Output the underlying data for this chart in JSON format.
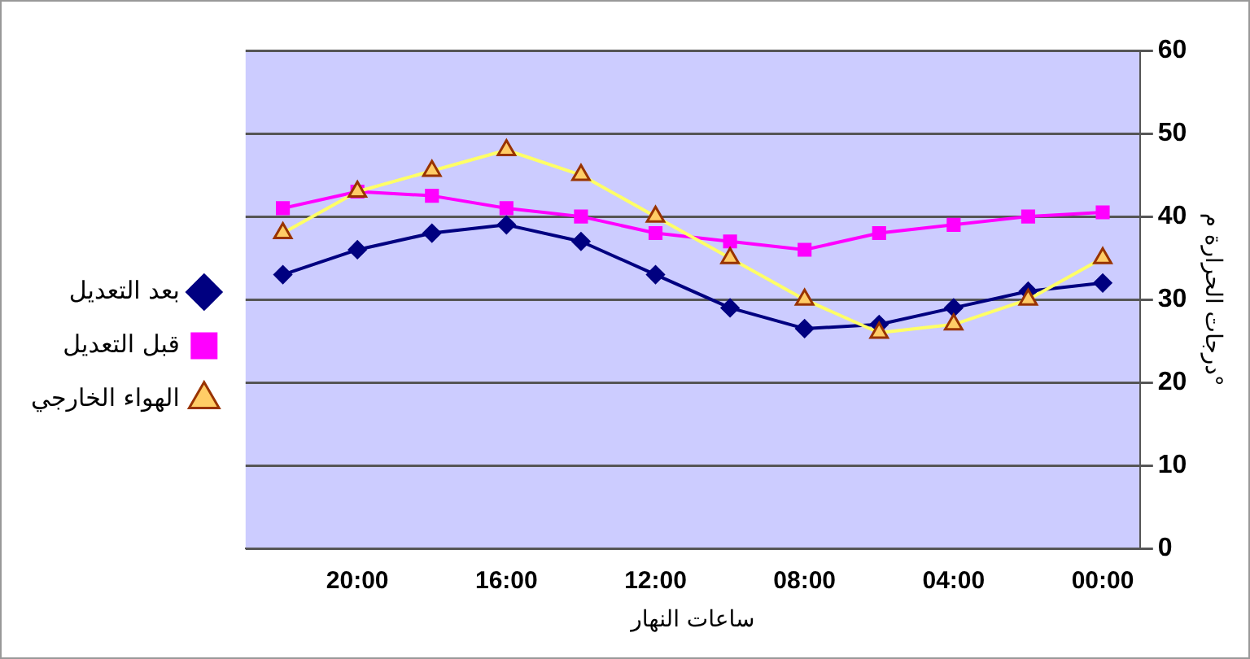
{
  "chart_data": {
    "type": "line",
    "xlabel": "ساعات النهار",
    "ylabel": "درجات الحرارة م°",
    "categories": [
      null,
      "20:00",
      null,
      "16:00",
      null,
      "12:00",
      null,
      "08:00",
      null,
      "04:00",
      null,
      "00:00"
    ],
    "series": [
      {
        "name": "بعد التعديل",
        "color": "#000080",
        "marker": "diamond",
        "values": [
          33,
          36,
          38,
          39,
          37,
          33,
          29,
          26.5,
          27,
          29,
          31,
          32
        ]
      },
      {
        "name": "قبل التعديل",
        "color": "#ff00ff",
        "marker": "square",
        "values": [
          41,
          43,
          42.5,
          41,
          40,
          38,
          37,
          36,
          38,
          39,
          40,
          40.5
        ]
      },
      {
        "name": "الهواء الخارجي",
        "color": "#ffff66",
        "marker": "triangle",
        "values": [
          38,
          43,
          45.5,
          48,
          45,
          40,
          35,
          30,
          26,
          27,
          30,
          35
        ]
      }
    ],
    "ylim": [
      0,
      60
    ],
    "yticks": [
      0,
      10,
      20,
      30,
      40,
      50,
      60
    ],
    "grid": "y",
    "legend": "left",
    "line_style": "solid"
  }
}
